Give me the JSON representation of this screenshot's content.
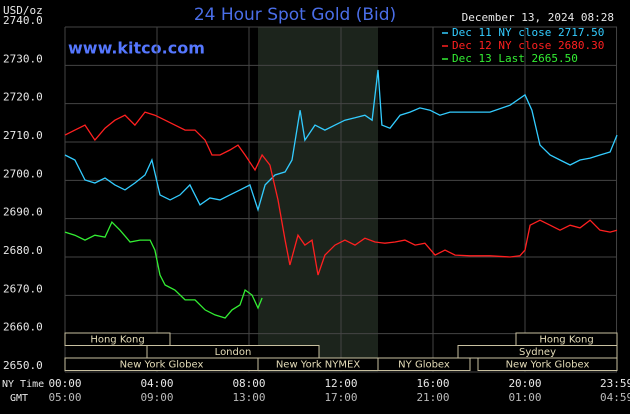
{
  "chart_data": {
    "type": "line",
    "title": "24 Hour Spot Gold (Bid)",
    "unit": "USD/oz",
    "source": "www.kitco.com",
    "date": "December 13, 2024 08:28",
    "xlim": [
      0,
      24
    ],
    "ylim": [
      2650,
      2740
    ],
    "yticks": [
      {
        "value": 2740,
        "label": "2740.0"
      },
      {
        "value": 2730,
        "label": "2730.0"
      },
      {
        "value": 2720,
        "label": "2720.0"
      },
      {
        "value": 2710,
        "label": "2710.0"
      },
      {
        "value": 2700,
        "label": "2700.0"
      },
      {
        "value": 2690,
        "label": "2690.0"
      },
      {
        "value": 2680,
        "label": "2680.0"
      },
      {
        "value": 2670,
        "label": "2670.0"
      },
      {
        "value": 2660,
        "label": "2660.0"
      },
      {
        "value": 2650,
        "label": "2650.0"
      }
    ],
    "x_axis_label": "NY Time",
    "x2_axis_label": "GMT",
    "xticks": [
      {
        "value": 0,
        "label": "00:00"
      },
      {
        "value": 4,
        "label": "04:00"
      },
      {
        "value": 8,
        "label": "08:00"
      },
      {
        "value": 12,
        "label": "12:00"
      },
      {
        "value": 16,
        "label": "16:00"
      },
      {
        "value": 20,
        "label": "20:00"
      },
      {
        "value": 23.98,
        "label": "23:59"
      }
    ],
    "x2ticks": [
      {
        "value": 0,
        "label": "05:00"
      },
      {
        "value": 4,
        "label": "09:00"
      },
      {
        "value": 8,
        "label": "13:00"
      },
      {
        "value": 12,
        "label": "17:00"
      },
      {
        "value": 16,
        "label": "21:00"
      },
      {
        "value": 20,
        "label": "01:00"
      },
      {
        "value": 23.98,
        "label": "04:59"
      }
    ],
    "sessions": [
      "Hong Kong",
      "Hong Kong",
      "London",
      "Sydney",
      "New York Globex",
      "New York NYMEX",
      "NY Globex",
      "New York Globex"
    ],
    "grid": true,
    "series": [
      {
        "name": "Dec 11 NY close 2717.50",
        "color": "#33ccff",
        "x": [
          0,
          0.43,
          0.87,
          1.3,
          1.74,
          2.17,
          2.61,
          3.04,
          3.48,
          3.78,
          4.13,
          4.57,
          5,
          5.43,
          5.87,
          6.3,
          6.74,
          7.17,
          7.61,
          8.04,
          8.39,
          8.7,
          9.13,
          9.57,
          9.87,
          10.22,
          10.43,
          10.87,
          11.3,
          11.74,
          12.17,
          12.61,
          13.04,
          13.35,
          13.61,
          13.78,
          14.13,
          14.57,
          15,
          15.43,
          15.87,
          16.3,
          16.74,
          17.61,
          18.48,
          19.35,
          20,
          20.3,
          20.65,
          21.09,
          21.52,
          21.96,
          22.39,
          22.83,
          23.26,
          23.7,
          24
        ],
        "values": [
          2706.6,
          2705.3,
          2700.1,
          2699.3,
          2700.6,
          2698.8,
          2697.5,
          2699.3,
          2701.4,
          2705.3,
          2696.2,
          2694.9,
          2696.2,
          2698.8,
          2693.6,
          2695.4,
          2694.9,
          2696.2,
          2697.5,
          2698.8,
          2692.3,
          2698.8,
          2701.4,
          2702.2,
          2705.3,
          2718.3,
          2710.5,
          2714.4,
          2713.1,
          2714.4,
          2715.7,
          2716.3,
          2717.0,
          2715.7,
          2728.8,
          2714.4,
          2713.6,
          2717.0,
          2717.8,
          2718.9,
          2718.3,
          2717.0,
          2717.8,
          2717.8,
          2717.8,
          2719.6,
          2722.3,
          2718.3,
          2709.2,
          2706.6,
          2705.3,
          2704.0,
          2705.3,
          2705.8,
          2706.6,
          2707.4,
          2711.8
        ]
      },
      {
        "name": "Dec 12 NY close 2680.30",
        "color": "#ff2020",
        "x": [
          0,
          0.43,
          0.87,
          1.3,
          1.74,
          2.17,
          2.61,
          3.04,
          3.48,
          3.91,
          4.35,
          4.78,
          5.22,
          5.65,
          6.09,
          6.39,
          6.74,
          7.17,
          7.52,
          7.83,
          8.26,
          8.57,
          8.91,
          9.26,
          9.57,
          9.78,
          10.13,
          10.43,
          10.74,
          11,
          11.3,
          11.74,
          12.17,
          12.61,
          13.04,
          13.48,
          13.91,
          14.35,
          14.78,
          15.22,
          15.65,
          16.09,
          16.52,
          16.96,
          17.61,
          18.48,
          19.35,
          19.78,
          20,
          20.22,
          20.65,
          21.09,
          21.52,
          21.96,
          22.39,
          22.83,
          23.26,
          23.7,
          24
        ],
        "values": [
          2711.8,
          2713.1,
          2714.4,
          2710.5,
          2713.6,
          2715.7,
          2717.0,
          2714.4,
          2717.8,
          2717.0,
          2715.7,
          2714.4,
          2713.1,
          2713.1,
          2710.5,
          2706.6,
          2706.6,
          2707.9,
          2709.2,
          2706.6,
          2702.7,
          2706.6,
          2704.0,
          2694.9,
          2684.4,
          2677.9,
          2685.7,
          2683.1,
          2684.4,
          2675.3,
          2680.5,
          2683.1,
          2684.4,
          2683.1,
          2684.9,
          2683.9,
          2683.6,
          2683.9,
          2684.4,
          2683.1,
          2683.6,
          2680.5,
          2681.8,
          2680.5,
          2680.3,
          2680.3,
          2680.0,
          2680.3,
          2681.8,
          2688.3,
          2689.6,
          2688.3,
          2687.0,
          2688.3,
          2687.6,
          2689.6,
          2687.0,
          2686.5,
          2687.0
        ]
      },
      {
        "name": "Dec 13 Last 2665.50",
        "color": "#33ee33",
        "x": [
          0,
          0.43,
          0.87,
          1.3,
          1.74,
          2.04,
          2.39,
          2.83,
          3.26,
          3.7,
          3.91,
          4.13,
          4.35,
          4.78,
          5.22,
          5.65,
          6.09,
          6.52,
          6.96,
          7.26,
          7.61,
          7.83,
          8.13,
          8.39,
          8.57
        ],
        "values": [
          2686.5,
          2685.7,
          2684.4,
          2685.7,
          2685.2,
          2689.1,
          2687.0,
          2683.9,
          2684.4,
          2684.4,
          2681.8,
          2675.3,
          2672.7,
          2671.4,
          2668.8,
          2668.8,
          2666.2,
          2664.9,
          2664.1,
          2666.2,
          2667.5,
          2671.4,
          2670.1,
          2666.7,
          2669.3
        ]
      }
    ]
  }
}
